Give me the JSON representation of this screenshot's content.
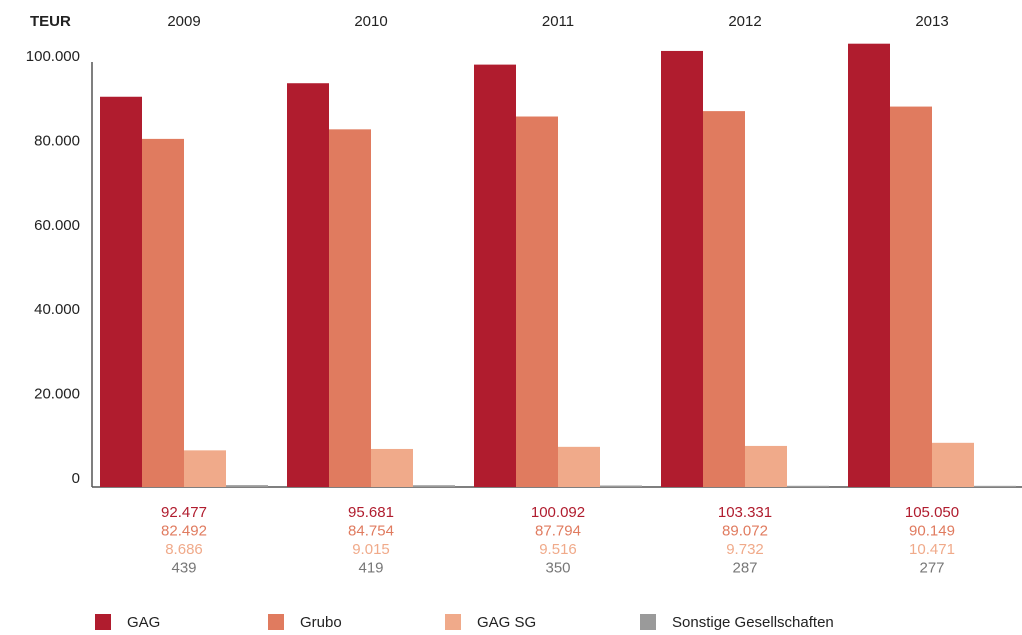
{
  "chart_data": {
    "type": "bar",
    "unit_label": "TEUR",
    "categories": [
      "2009",
      "2010",
      "2011",
      "2012",
      "2013"
    ],
    "series": [
      {
        "name": "GAG",
        "color": "#b01c2e",
        "values": [
          92477,
          95681,
          100092,
          103331,
          105050
        ],
        "value_labels": [
          "92.477",
          "95.681",
          "100.092",
          "103.331",
          "105.050"
        ]
      },
      {
        "name": "Grubo",
        "color": "#e07b5f",
        "values": [
          82492,
          84754,
          87794,
          89072,
          90149
        ],
        "value_labels": [
          "82.492",
          "84.754",
          "87.794",
          "89.072",
          "90.149"
        ]
      },
      {
        "name": "GAG SG",
        "color": "#f0aa8a",
        "values": [
          8686,
          9015,
          9516,
          9732,
          10471
        ],
        "value_labels": [
          "8.686",
          "9.015",
          "9.516",
          "9.732",
          "10.471"
        ]
      },
      {
        "name": "Sonstige Gesellschaften",
        "color": "#9a9a9a",
        "values": [
          439,
          419,
          350,
          287,
          277
        ]
      }
    ],
    "ylim": [
      0,
      100000
    ],
    "yticks": [
      0,
      {
        "value": 20000,
        "label": "20.000"
      },
      {
        "value": 40000,
        "label": "40.000"
      },
      {
        "value": 60000,
        "label": "60.000"
      },
      {
        "value": 80000,
        "label": "80.000"
      },
      {
        "value": 100000,
        "label": "100.000"
      }
    ],
    "grid": false
  }
}
